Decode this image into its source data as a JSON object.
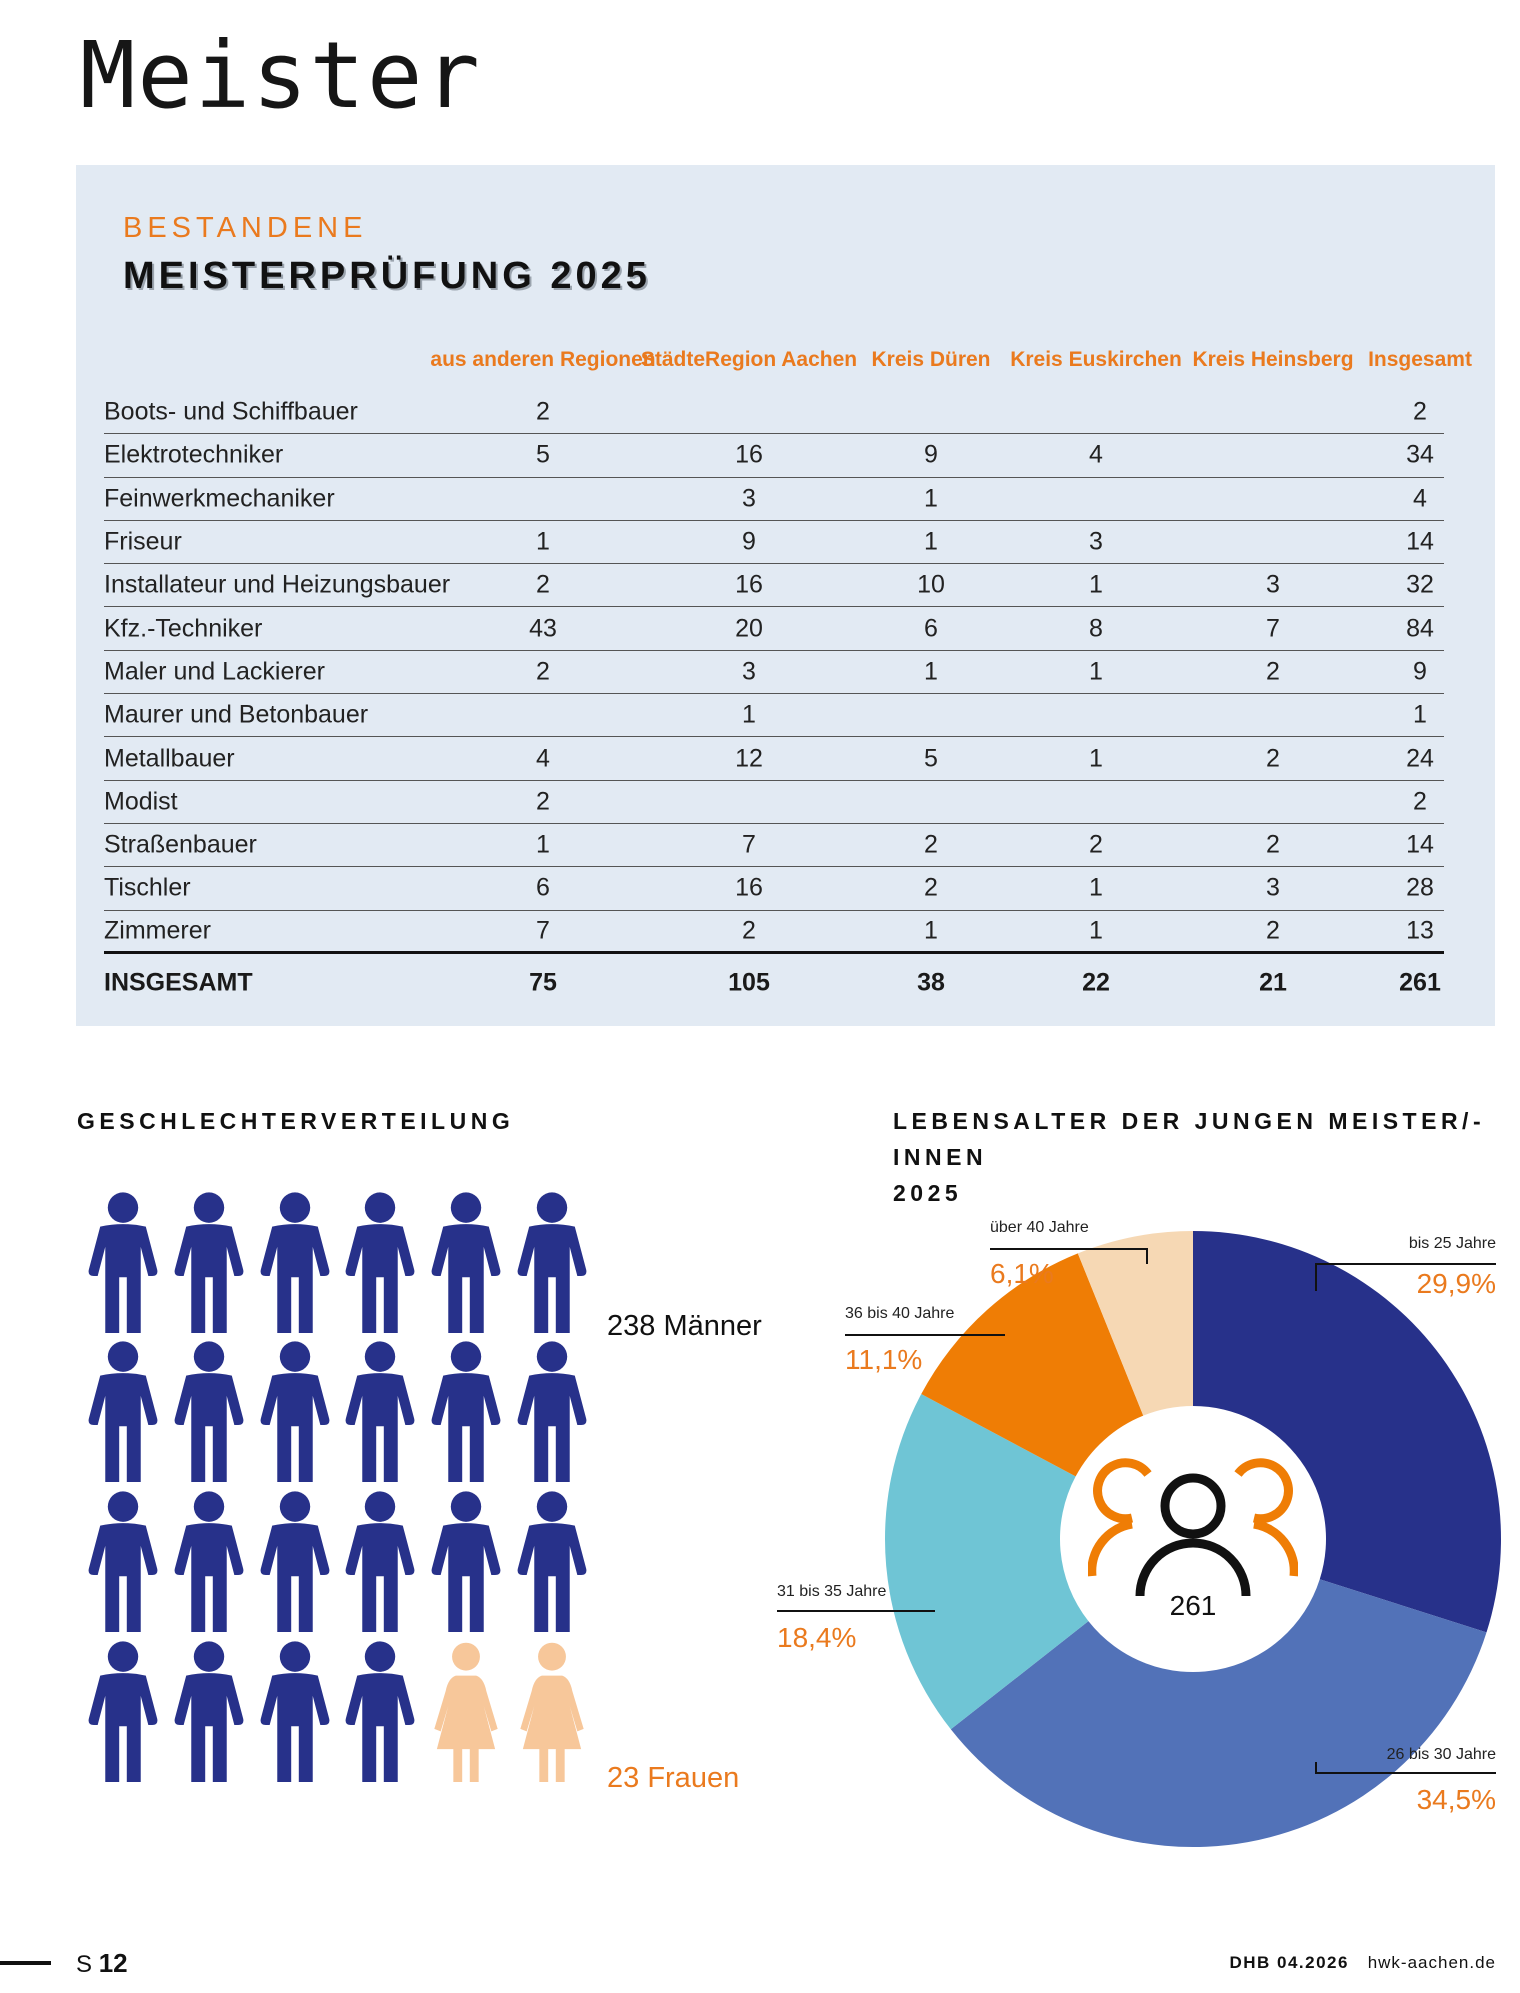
{
  "page_title": "Meister",
  "panel": {
    "kicker": "BESTANDENE",
    "title": "MEISTERPRÜFUNG 2025",
    "columns": [
      "aus anderen Regionen",
      "StädteRegion Aachen",
      "Kreis Düren",
      "Kreis Euskirchen",
      "Kreis Heinsberg",
      "Insgesamt"
    ],
    "rows": [
      {
        "label": "Boots- und Schiffbauer",
        "values": [
          "2",
          "",
          "",
          "",
          "",
          "2"
        ]
      },
      {
        "label": "Elektrotechniker",
        "values": [
          "5",
          "16",
          "9",
          "4",
          "",
          "34"
        ]
      },
      {
        "label": "Feinwerkmechaniker",
        "values": [
          "",
          "3",
          "1",
          "",
          "",
          "4"
        ]
      },
      {
        "label": "Friseur",
        "values": [
          "1",
          "9",
          "1",
          "3",
          "",
          "14"
        ]
      },
      {
        "label": "Installateur und Heizungsbauer",
        "values": [
          "2",
          "16",
          "10",
          "1",
          "3",
          "32"
        ]
      },
      {
        "label": "Kfz.-Techniker",
        "values": [
          "43",
          "20",
          "6",
          "8",
          "7",
          "84"
        ]
      },
      {
        "label": "Maler und Lackierer",
        "values": [
          "2",
          "3",
          "1",
          "1",
          "2",
          "9"
        ]
      },
      {
        "label": "Maurer und Betonbauer",
        "values": [
          "",
          "1",
          "",
          "",
          "",
          "1"
        ]
      },
      {
        "label": "Metallbauer",
        "values": [
          "4",
          "12",
          "5",
          "1",
          "2",
          "24"
        ]
      },
      {
        "label": "Modist",
        "values": [
          "2",
          "",
          "",
          "",
          "",
          "2"
        ]
      },
      {
        "label": "Straßenbauer",
        "values": [
          "1",
          "7",
          "2",
          "2",
          "2",
          "14"
        ]
      },
      {
        "label": "Tischler",
        "values": [
          "6",
          "16",
          "2",
          "1",
          "3",
          "28"
        ]
      },
      {
        "label": "Zimmerer",
        "values": [
          "7",
          "2",
          "1",
          "1",
          "2",
          "13"
        ]
      }
    ],
    "total": {
      "label": "INSGESAMT",
      "values": [
        "75",
        "105",
        "38",
        "22",
        "21",
        "261"
      ]
    }
  },
  "gender": {
    "title": "GESCHLECHTERVERTEILUNG",
    "men_label": "238 Männer",
    "women_label": "23 Frauen",
    "men": 238,
    "women": 23,
    "icons_men": 22,
    "icons_women": 2,
    "colors": {
      "men": "#27318a",
      "women": "#f7c79a"
    }
  },
  "chart_data": {
    "type": "pie",
    "title_line1": "LEBENSALTER DER JUNGEN MEISTER/-INNEN",
    "title_line2": "2025",
    "center_value": "261",
    "categories": [
      "bis 25 Jahre",
      "26 bis 30 Jahre",
      "31 bis 35 Jahre",
      "36 bis 40 Jahre",
      "über 40 Jahre"
    ],
    "values": [
      29.9,
      34.5,
      18.4,
      11.1,
      6.1
    ],
    "value_labels": [
      "29,9%",
      "34,5%",
      "18,4%",
      "11,1%",
      "6,1%"
    ],
    "colors": [
      "#27318a",
      "#5272b8",
      "#6fc5d5",
      "#ef7d05",
      "#f6d8b4"
    ],
    "style": "donut"
  },
  "footer": {
    "page_prefix": "S",
    "page_number": "12",
    "issue": "DHB 04.2026",
    "website": "hwk-aachen.de"
  }
}
